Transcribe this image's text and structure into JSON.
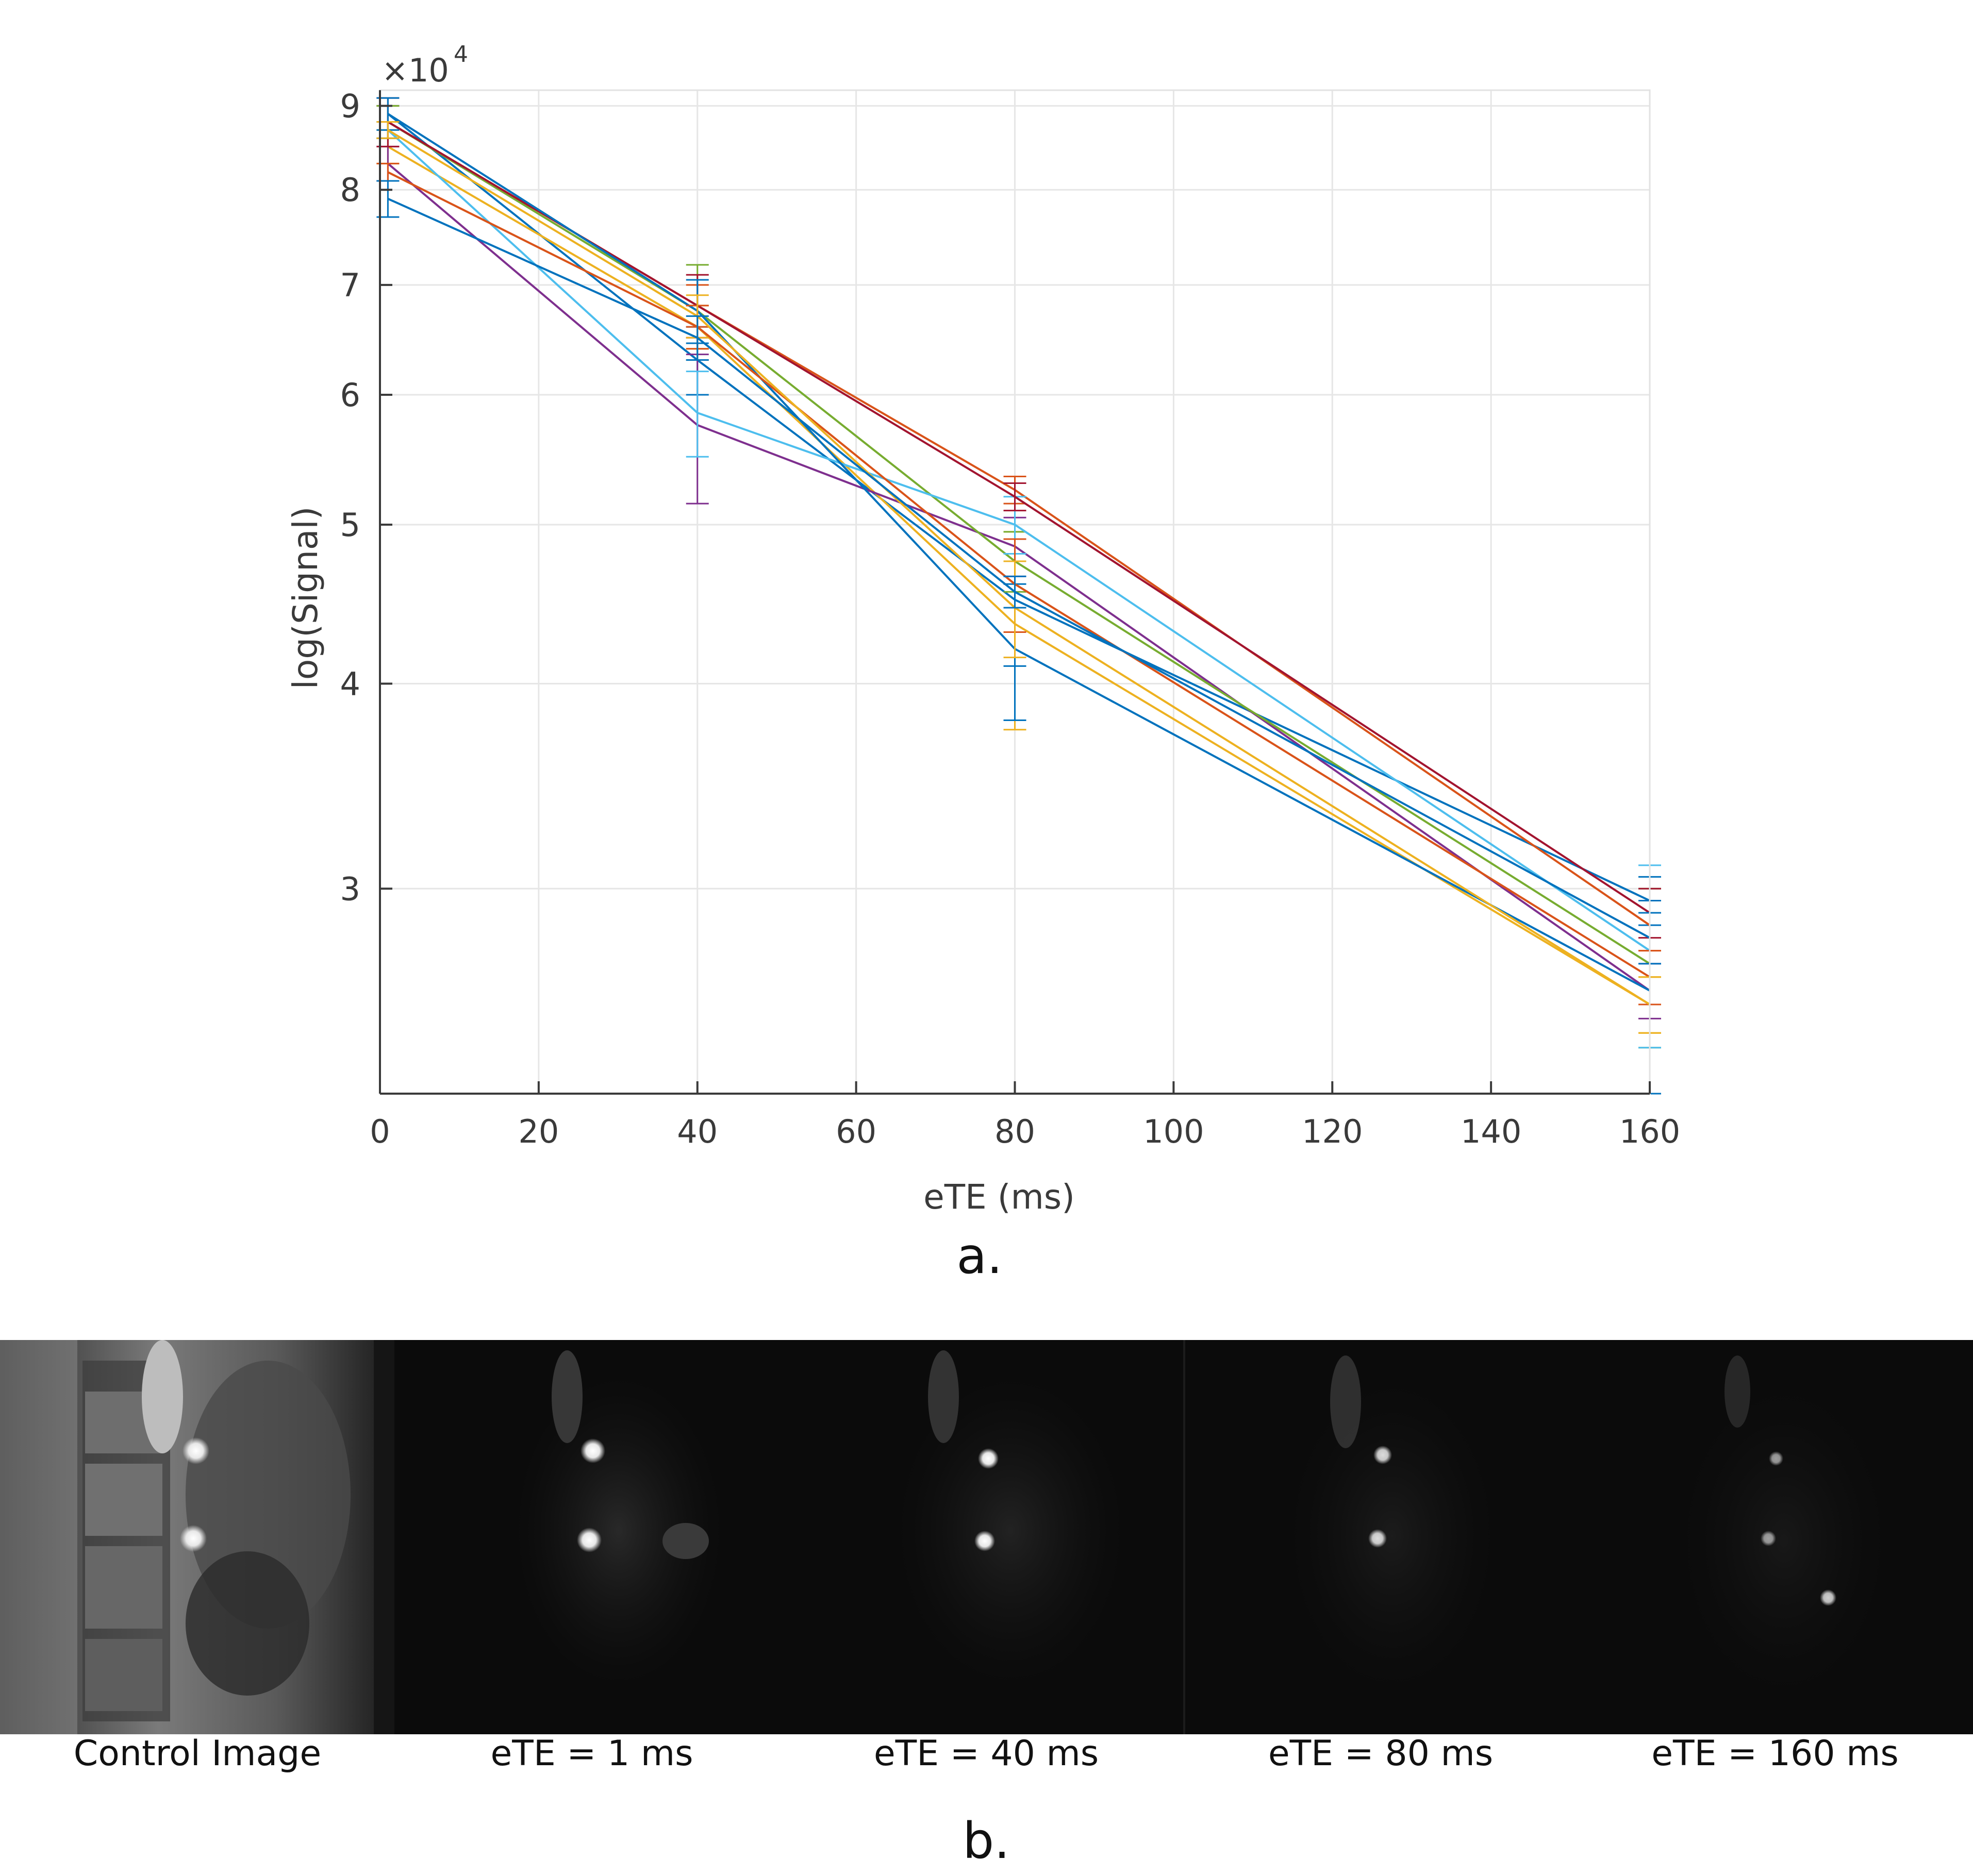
{
  "chart_data": {
    "type": "line",
    "xlabel": "eTE (ms)",
    "ylabel": "log(Signal)",
    "exponent_label": "×10",
    "exponent_power": "4",
    "yscale": "log",
    "grid": true,
    "x": [
      1,
      40,
      80,
      160
    ],
    "xlim": [
      0,
      160
    ],
    "ylim": [
      2.25,
      9.2
    ],
    "xticks": [
      "0",
      "20",
      "40",
      "60",
      "80",
      "100",
      "120",
      "140",
      "160"
    ],
    "xtick_values": [
      0,
      20,
      40,
      60,
      80,
      100,
      120,
      140,
      160
    ],
    "yticks": [
      "3",
      "4",
      "5",
      "6",
      "7",
      "8",
      "9"
    ],
    "ytick_values": [
      3,
      4,
      5,
      6,
      7,
      8,
      9
    ],
    "series": [
      {
        "color": "#0072BD",
        "values": [
          8.9,
          6.3,
          4.5,
          2.95
        ],
        "err": [
          0.1,
          0.3,
          0.4,
          0.1
        ]
      },
      {
        "color": "#D95319",
        "values": [
          8.8,
          6.8,
          5.25,
          2.85
        ],
        "err": [
          0.2,
          0.2,
          0.1,
          0.1
        ]
      },
      {
        "color": "#EDB120",
        "values": [
          8.5,
          6.6,
          4.35,
          2.55
        ],
        "err": [
          0.2,
          0.2,
          0.6,
          0.1
        ]
      },
      {
        "color": "#7E2F8E",
        "values": [
          8.3,
          5.75,
          4.85,
          2.6
        ],
        "err": [
          0.2,
          0.6,
          0.2,
          0.1
        ]
      },
      {
        "color": "#77AC30",
        "values": [
          8.8,
          6.75,
          4.75,
          2.7
        ],
        "err": [
          0.2,
          0.45,
          0.2,
          0.3
        ]
      },
      {
        "color": "#4DBEEE",
        "values": [
          8.7,
          5.85,
          5.0,
          2.75
        ],
        "err": [
          0.1,
          0.35,
          0.2,
          0.35
        ]
      },
      {
        "color": "#A2142F",
        "values": [
          8.8,
          6.8,
          5.2,
          2.9
        ],
        "err": [
          0.3,
          0.3,
          0.1,
          0.1
        ]
      },
      {
        "color": "#0072BD",
        "values": [
          8.9,
          6.75,
          4.2,
          2.6
        ],
        "err": [
          0.2,
          0.3,
          0.4,
          0.35
        ]
      },
      {
        "color": "#D95319",
        "values": [
          8.2,
          6.6,
          4.6,
          2.65
        ],
        "err": [
          0.1,
          0.2,
          0.3,
          0.1
        ]
      },
      {
        "color": "#EDB120",
        "values": [
          8.7,
          6.7,
          4.45,
          2.55
        ],
        "err": [
          0.1,
          0.2,
          0.3,
          0.1
        ]
      },
      {
        "color": "#0072BD",
        "values": [
          7.9,
          6.5,
          4.55,
          2.8
        ],
        "err": [
          0.2,
          0.2,
          0.1,
          0.1
        ]
      }
    ]
  },
  "panel_a_label": "a.",
  "panel_b_label": "b.",
  "mri_panel": {
    "background": "#0b0b0b",
    "captions": [
      "Control Image",
      "eTE = 1 ms",
      "eTE = 40 ms",
      "eTE = 80 ms",
      "eTE = 160 ms"
    ]
  }
}
